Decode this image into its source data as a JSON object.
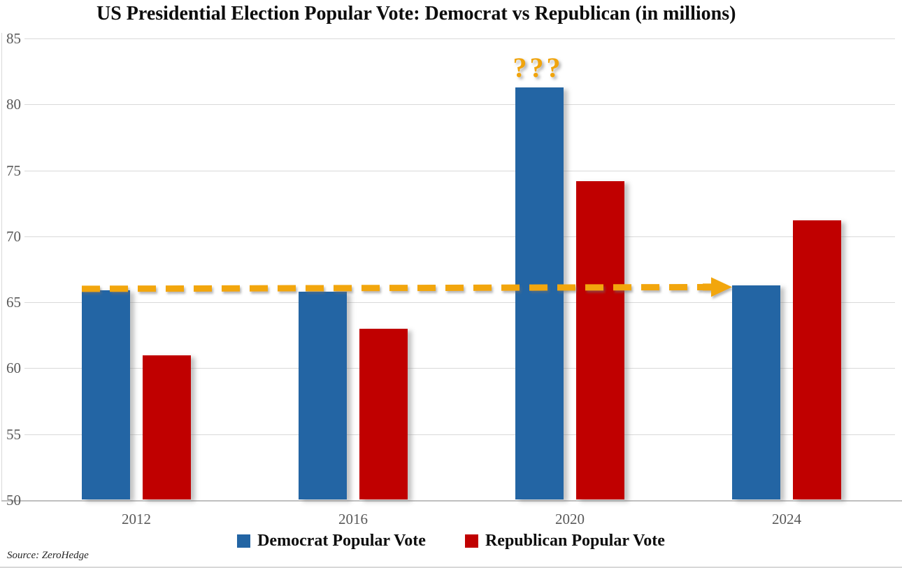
{
  "title": "US Presidential Election Popular Vote: Democrat vs Republican (in millions)",
  "source_note": "Source: ZeroHedge",
  "colors": {
    "democrat": "#2365a4",
    "republican": "#c00000",
    "accent_orange": "#f2a60a",
    "gridline": "#d9d9d9",
    "axis_label": "#595959"
  },
  "legend": {
    "items": [
      {
        "label": "Democrat Popular Vote",
        "color": "#2365a4"
      },
      {
        "label": "Republican Popular Vote",
        "color": "#c00000"
      }
    ]
  },
  "annotations": {
    "question_marks": "???",
    "question_marks_target": {
      "category": "2020",
      "series": "Democrat Popular Vote"
    },
    "dashed_arrow": {
      "style": "dashed",
      "color": "#f2a60a",
      "y_value": 66.1,
      "from_category": "2012",
      "to_category": "2024",
      "meaning": "Democrat popular vote flat near 66 million in 2012, 2016 and 2024"
    }
  },
  "chart_data": {
    "type": "bar",
    "title": "US Presidential Election Popular Vote: Democrat vs Republican (in millions)",
    "categories": [
      "2012",
      "2016",
      "2020",
      "2024"
    ],
    "series": [
      {
        "name": "Democrat Popular Vote",
        "color": "#2365a4",
        "values": [
          65.9,
          65.8,
          81.3,
          66.3
        ]
      },
      {
        "name": "Republican Popular Vote",
        "color": "#c00000",
        "values": [
          61.0,
          63.0,
          74.2,
          71.2
        ]
      }
    ],
    "xlabel": "",
    "ylabel": "",
    "ylim": [
      50,
      85
    ],
    "yticks": [
      50,
      55,
      60,
      65,
      70,
      75,
      80,
      85
    ],
    "grid": true,
    "legend_position": "bottom"
  }
}
